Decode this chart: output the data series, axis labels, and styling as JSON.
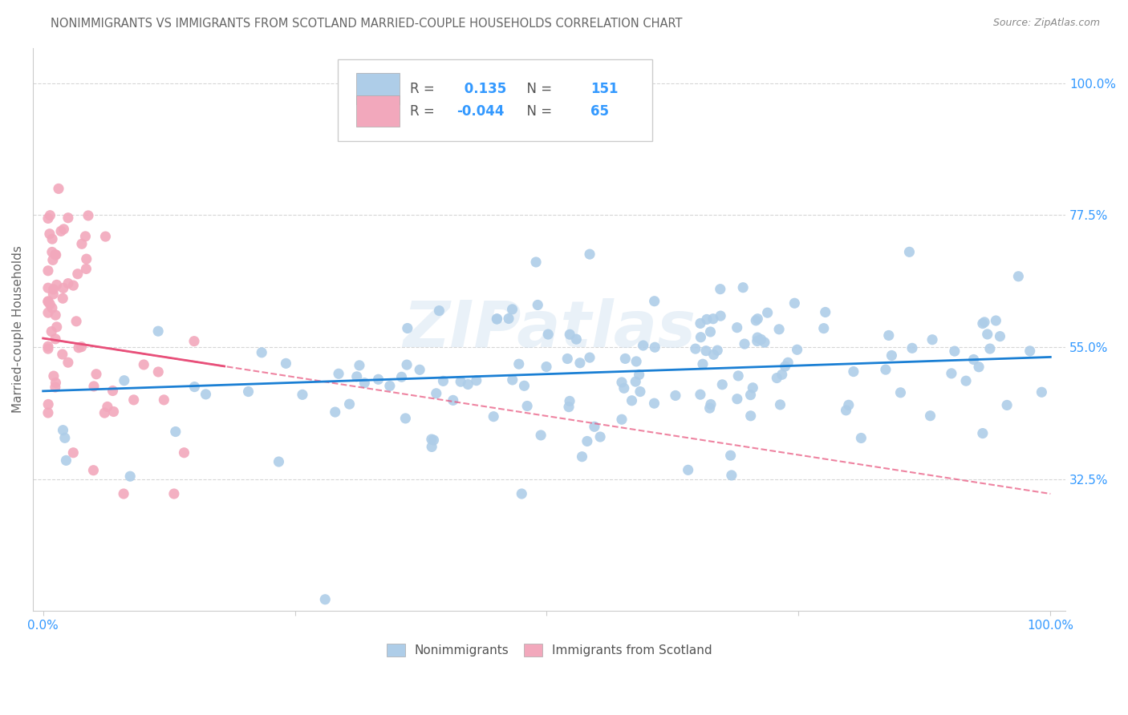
{
  "title": "NONIMMIGRANTS VS IMMIGRANTS FROM SCOTLAND MARRIED-COUPLE HOUSEHOLDS CORRELATION CHART",
  "source": "Source: ZipAtlas.com",
  "ylabel": "Married-couple Households",
  "xlim": [
    0.0,
    1.0
  ],
  "ylim": [
    0.1,
    1.05
  ],
  "xticklabels": [
    "0.0%",
    "100.0%"
  ],
  "ytick_right_labels": [
    "100.0%",
    "77.5%",
    "55.0%",
    "32.5%"
  ],
  "ytick_right_values": [
    1.0,
    0.775,
    0.55,
    0.325
  ],
  "R_blue": 0.135,
  "N_blue": 151,
  "R_pink": -0.044,
  "N_pink": 65,
  "blue_color": "#aecde8",
  "pink_color": "#f2a8bc",
  "blue_line_color": "#1a7fd4",
  "pink_line_color": "#e8507a",
  "pink_dash_color": "#e8507a",
  "watermark": "ZIPatlas",
  "bg_color": "#ffffff",
  "grid_color": "#cccccc",
  "title_color": "#666666",
  "axis_label_color": "#3399ff",
  "legend_text_color": "#555555",
  "legend_value_color": "#3399ff"
}
